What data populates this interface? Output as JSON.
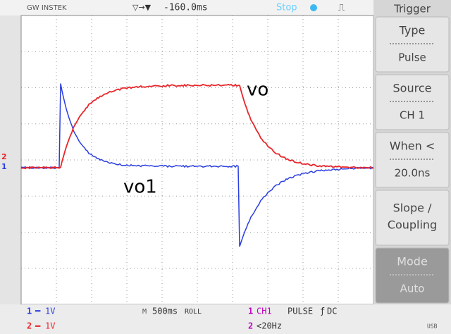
{
  "header": {
    "brand": "GW INSTEK",
    "delay_icon": "▽→▼",
    "delay": "-160.0ms",
    "status": "Stop",
    "trigger_icon": "⎍"
  },
  "screen": {
    "ch2_marker": "2",
    "ch1_marker": "1",
    "annotations": {
      "vo": "vo",
      "vo1": "vo1"
    }
  },
  "menu": {
    "title": "Trigger",
    "items": [
      {
        "label": "Type",
        "value": "Pulse"
      },
      {
        "label": "Source",
        "value": "CH 1"
      },
      {
        "label": "When <",
        "value": "20.0ns"
      },
      {
        "label": [
          "Slope /",
          "Coupling"
        ]
      },
      {
        "label": "Mode",
        "value": "Auto"
      }
    ]
  },
  "footer": {
    "ch1": {
      "num": "1",
      "coupling": "═",
      "scale": "1V"
    },
    "ch2": {
      "num": "2",
      "coupling": "═",
      "scale": "1V"
    },
    "timebase": {
      "icon": "M",
      "scale": "500ms",
      "mode": "ROLL"
    },
    "trigger": {
      "num": "1",
      "source": "CH1",
      "type": "PULSE",
      "slope": "ƒ",
      "coupling": "DC",
      "filter_num": "2",
      "filter": "<20Hz"
    },
    "usb": "USB"
  }
}
